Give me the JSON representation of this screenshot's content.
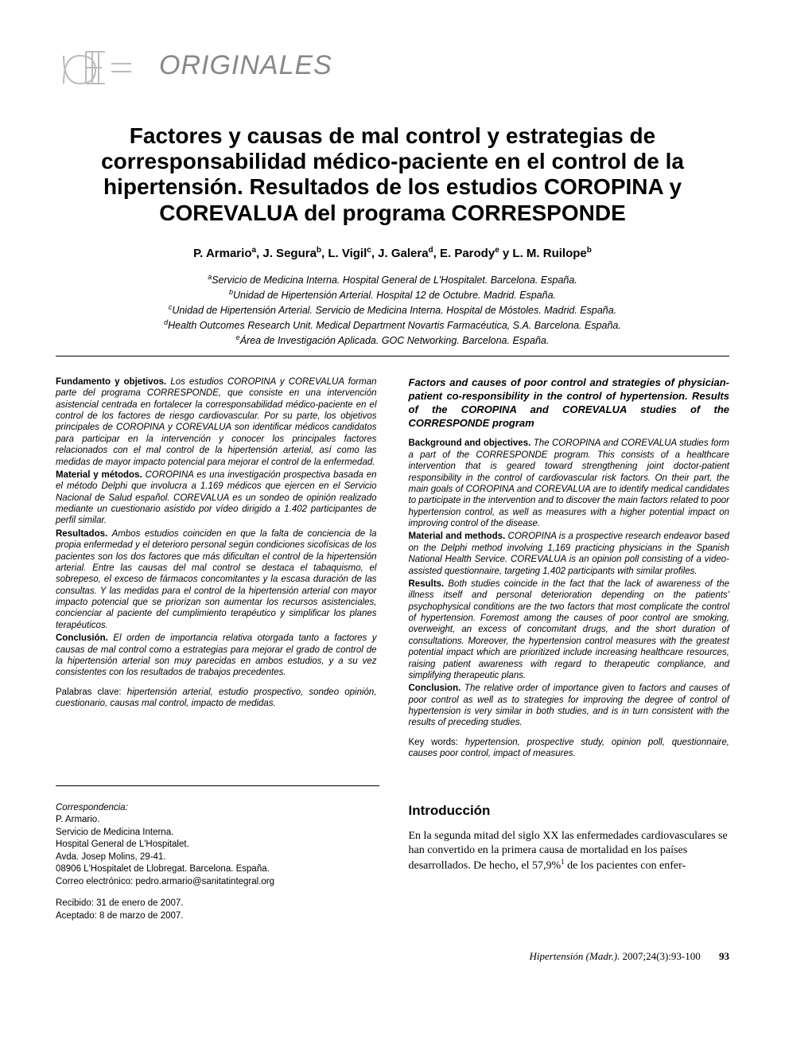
{
  "header": {
    "section_label": "ORIGINALES"
  },
  "article": {
    "title": "Factores y causas de mal control y estrategias de corresponsabilidad médico-paciente en el control de la hipertensión. Resultados de los estudios COROPINA y COREVALUA del programa CORRESPONDE",
    "authors_html": "P. Armario<sup>a</sup>, J. Segura<sup>b</sup>, L. Vigil<sup>c</sup>, J. Galera<sup>d</sup>, E. Parody<sup>e</sup> y L. M. Ruilope<sup>b</sup>",
    "affiliations": [
      "<sup>a</sup>Servicio de Medicina Interna. Hospital General de L'Hospitalet. Barcelona. España.",
      "<sup>b</sup>Unidad de Hipertensión Arterial. Hospital 12 de Octubre. Madrid. España.",
      "<sup>c</sup>Unidad de Hipertensión Arterial. Servicio de Medicina Interna. Hospital de Móstoles. Madrid. España.",
      "<sup>d</sup>Health Outcomes Research Unit. Medical Department Novartis Farmacéutica, S.A. Barcelona. España.",
      "<sup>e</sup>Área de Investigación Aplicada. GOC Networking. Barcelona. España."
    ]
  },
  "abstract_es": {
    "sections": [
      {
        "label": "Fundamento y objetivos.",
        "body": "Los estudios COROPINA y COREVALUA forman parte del programa CORRESPONDE, que consiste en una intervención asistencial centrada en fortalecer la corresponsabilidad médico-paciente en el control de los factores de riesgo cardiovascular. Por su parte, los objetivos principales de COROPINA y COREVALUA son identificar médicos candidatos para participar en la intervención y conocer los principales factores relacionados con el mal control de la hipertensión arterial, así como las medidas de mayor impacto potencial para mejorar el control de la enfermedad."
      },
      {
        "label": "Material y métodos.",
        "body": "COROPINA es una investigación prospectiva basada en el método Delphi que involucra a 1.169 médicos que ejercen en el Servicio Nacional de Salud español. COREVALUA es un sondeo de opinión realizado mediante un cuestionario asistido por vídeo dirigido a 1.402 participantes de perfil similar."
      },
      {
        "label": "Resultados.",
        "body": "Ambos estudios coinciden en que la falta de conciencia de la propia enfermedad y el deterioro personal según condiciones sicofísicas de los pacientes son los dos factores que más dificultan el control de la hipertensión arterial. Entre las causas del mal control se destaca el tabaquismo, el sobrepeso, el exceso de fármacos concomitantes y la escasa duración de las consultas. Y las medidas para el control de la hipertensión arterial con mayor impacto potencial que se priorizan son aumentar los recursos asistenciales, concienciar al paciente del cumplimiento terapéutico y simplificar los planes terapéuticos."
      },
      {
        "label": "Conclusión.",
        "body": "El orden de importancia relativa otorgada tanto a factores y causas de mal control como a estrategias para mejorar el grado de control de la hipertensión arterial son muy parecidas en ambos estudios, y a su vez consistentes con los resultados de trabajos precedentes."
      }
    ],
    "keywords_label": "Palabras clave:",
    "keywords": "hipertensión arterial, estudio prospectivo, sondeo opinión, cuestionario, causas mal control, impacto de medidas."
  },
  "abstract_en": {
    "title": "Factors and causes of poor control and strategies of physician-patient co-responsibility in the control of hypertension. Results of the COROPINA and COREVALUA studies of the CORRESPONDE program",
    "sections": [
      {
        "label": "Background and objectives.",
        "body": "The COROPINA and COREVALUA studies form a part of the CORRESPONDE program. This consists of a healthcare intervention that is geared toward strengthening joint doctor-patient responsibility in the control of cardiovascular risk factors. On their part, the main goals of COROPINA and COREVALUA are to identify medical candidates to participate in the intervention and to discover the main factors related to poor hypertension control, as well as measures with a higher potential impact on improving control of the disease."
      },
      {
        "label": "Material and methods.",
        "body": "COROPINA is a prospective research endeavor based on the Delphi method involving 1,169 practicing physicians in the Spanish National Health Service. COREVALUA is an opinion poll consisting of a video-assisted questionnaire, targeting 1,402 participants with similar profiles."
      },
      {
        "label": "Results.",
        "body": "Both studies coincide in the fact that the lack of awareness of the illness itself and personal deterioration depending on the patients' psychophysical conditions are the two factors that most complicate the control of hypertension. Foremost among the causes of poor control are smoking, overweight, an excess of concomitant drugs, and the short duration of consultations. Moreover, the hypertension control measures with the greatest potential impact which are prioritized include increasing healthcare resources, raising patient awareness with regard to therapeutic compliance, and simplifying therapeutic plans."
      },
      {
        "label": "Conclusion.",
        "body": "The relative order of importance given to factors and causes of poor control as well as to strategies for improving the degree of control of hypertension is very similar in both studies, and is in turn consistent with the results of preceding studies."
      }
    ],
    "keywords_label": "Key words:",
    "keywords": "hypertension, prospective study, opinion poll, questionnaire, causes poor control, impact of measures."
  },
  "correspondence": {
    "title": "Correspondencia:",
    "lines": [
      "P. Armario.",
      "Servicio de Medicina Interna.",
      "Hospital General de L'Hospitalet.",
      "Avda. Josep Molins, 29-41.",
      "08906 L'Hospitalet de Llobregat. Barcelona. España.",
      "Correo electrónico: pedro.armario@sanitatintegral.org"
    ],
    "received": "Recibido: 31 de enero de 2007.",
    "accepted": "Aceptado: 8 de marzo de 2007."
  },
  "introduction": {
    "heading": "Introducción",
    "body_html": "En la segunda mitad del siglo XX las enfermedades cardiovasculares se han convertido en la primera causa de mortalidad en los países desarrollados. De hecho, el 57,9%<sup>1</sup> de los pacientes con enfer-"
  },
  "footer": {
    "citation": "Hipertensión (Madr.).",
    "issue": "2007;24(3):93-100",
    "page": "93"
  },
  "colors": {
    "text": "#000000",
    "muted": "#888888",
    "logo_stroke": "#bbbbbb"
  }
}
